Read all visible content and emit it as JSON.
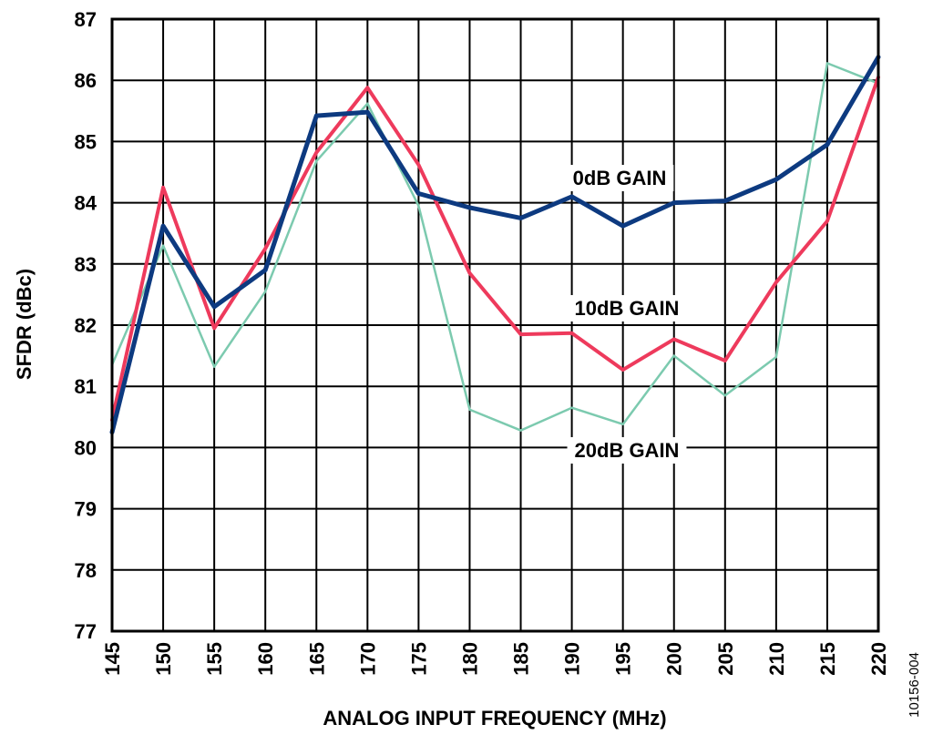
{
  "chart_data": {
    "type": "line",
    "xlabel": "ANALOG INPUT FREQUENCY (MHz)",
    "ylabel": "SFDR (dBc)",
    "xlim": [
      145,
      220
    ],
    "ylim": [
      77,
      87
    ],
    "x_ticks": [
      "145",
      "150",
      "155",
      "160",
      "165",
      "170",
      "175",
      "180",
      "185",
      "190",
      "195",
      "200",
      "205",
      "210",
      "215",
      "220"
    ],
    "y_ticks": [
      "77",
      "78",
      "79",
      "80",
      "81",
      "82",
      "83",
      "84",
      "85",
      "86",
      "87"
    ],
    "grid": true,
    "x": [
      145,
      150,
      155,
      160,
      165,
      170,
      175,
      180,
      185,
      190,
      195,
      200,
      205,
      210,
      215,
      220
    ],
    "series": [
      {
        "name": "0dB GAIN",
        "color": "#0d3a80",
        "values": [
          80.25,
          83.62,
          82.3,
          82.9,
          85.42,
          85.48,
          84.15,
          83.92,
          83.75,
          84.1,
          83.62,
          84.0,
          84.03,
          84.38,
          84.95,
          86.38
        ]
      },
      {
        "name": "10dB GAIN",
        "color": "#ee3a5c",
        "values": [
          80.45,
          84.25,
          81.95,
          83.25,
          84.82,
          85.88,
          84.62,
          82.85,
          81.85,
          81.87,
          81.27,
          81.77,
          81.42,
          82.7,
          83.7,
          86.05
        ]
      },
      {
        "name": "20dB GAIN",
        "color": "#7ccaaf",
        "values": [
          81.35,
          83.3,
          81.32,
          82.55,
          84.68,
          85.62,
          83.95,
          80.62,
          80.28,
          80.65,
          80.38,
          81.5,
          80.85,
          81.48,
          86.28,
          85.95
        ]
      }
    ]
  },
  "figure_id": "10156-004"
}
